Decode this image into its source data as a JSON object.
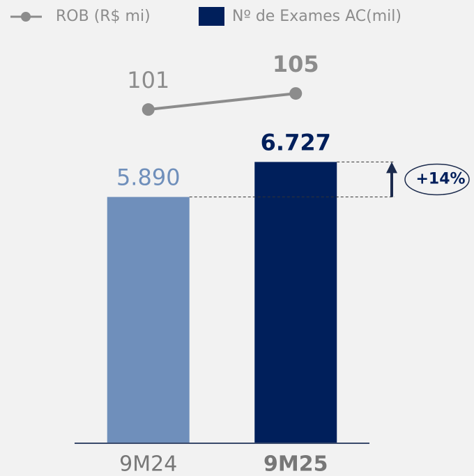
{
  "chart_data": {
    "type": "bar_line",
    "categories": [
      "9M24",
      "9M25"
    ],
    "series": [
      {
        "name": "ROB (R$ mi)",
        "type": "line",
        "axis": "y2",
        "color": "#8c8c8c",
        "values": [
          101,
          105
        ]
      },
      {
        "name": "Nº de Exames AC(mil)",
        "type": "bar",
        "color": "#001f5b",
        "colors": [
          "#6f8fbb",
          "#001f5b"
        ],
        "values": [
          5890,
          6727
        ],
        "value_labels": [
          "5.890",
          "6.727"
        ]
      }
    ],
    "ylim": [
      0,
      10000
    ],
    "y2lim": [
      18,
      122
    ],
    "annotation": "+14%",
    "grid": false
  }
}
